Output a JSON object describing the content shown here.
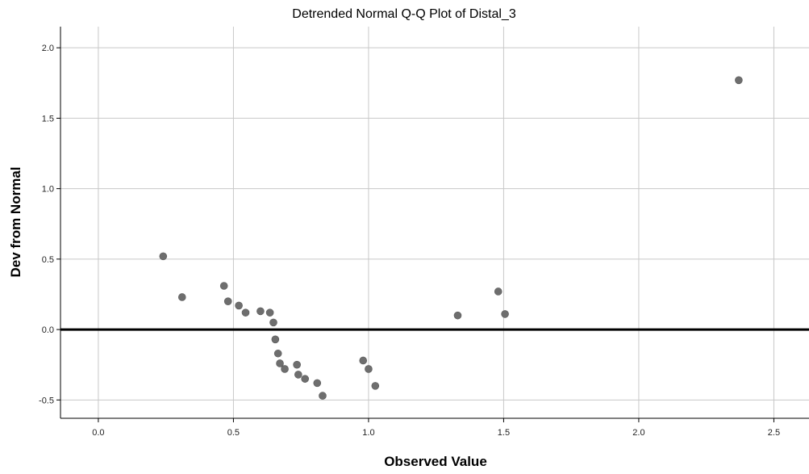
{
  "colors": {
    "background": "#ffffff",
    "grid": "#c8c8c8",
    "axis": "#000000",
    "reference_line": "#000000",
    "point": "#6e6e6e"
  },
  "chart_data": {
    "type": "scatter",
    "title": "Detrended Normal Q-Q Plot of Distal_3",
    "xlabel": "Observed Value",
    "ylabel": "Dev from Normal",
    "xlim": [
      -0.14,
      2.63
    ],
    "ylim": [
      -0.63,
      2.15
    ],
    "x_ticks": [
      0.0,
      0.5,
      1.0,
      1.5,
      2.0,
      2.5
    ],
    "x_tick_labels": [
      "0.0",
      "0.5",
      "1.0",
      "1.5",
      "2.0",
      "2.5"
    ],
    "y_ticks": [
      -0.5,
      0.0,
      0.5,
      1.0,
      1.5,
      2.0
    ],
    "y_tick_labels": [
      "-0.5",
      "0.0",
      "0.5",
      "1.0",
      "1.5",
      "2.0"
    ],
    "grid": true,
    "reference_line_y": 0.0,
    "points": [
      {
        "x": 0.24,
        "y": 0.52
      },
      {
        "x": 0.31,
        "y": 0.23
      },
      {
        "x": 0.465,
        "y": 0.31
      },
      {
        "x": 0.48,
        "y": 0.2
      },
      {
        "x": 0.52,
        "y": 0.17
      },
      {
        "x": 0.545,
        "y": 0.12
      },
      {
        "x": 0.6,
        "y": 0.13
      },
      {
        "x": 0.635,
        "y": 0.12
      },
      {
        "x": 0.648,
        "y": 0.05
      },
      {
        "x": 0.655,
        "y": -0.07
      },
      {
        "x": 0.665,
        "y": -0.17
      },
      {
        "x": 0.672,
        "y": -0.24
      },
      {
        "x": 0.69,
        "y": -0.28
      },
      {
        "x": 0.735,
        "y": -0.25
      },
      {
        "x": 0.74,
        "y": -0.32
      },
      {
        "x": 0.765,
        "y": -0.35
      },
      {
        "x": 0.81,
        "y": -0.38
      },
      {
        "x": 0.83,
        "y": -0.47
      },
      {
        "x": 0.98,
        "y": -0.22
      },
      {
        "x": 1.0,
        "y": -0.28
      },
      {
        "x": 1.025,
        "y": -0.4
      },
      {
        "x": 1.33,
        "y": 0.1
      },
      {
        "x": 1.48,
        "y": 0.27
      },
      {
        "x": 1.505,
        "y": 0.11
      },
      {
        "x": 2.37,
        "y": 1.77
      }
    ]
  }
}
